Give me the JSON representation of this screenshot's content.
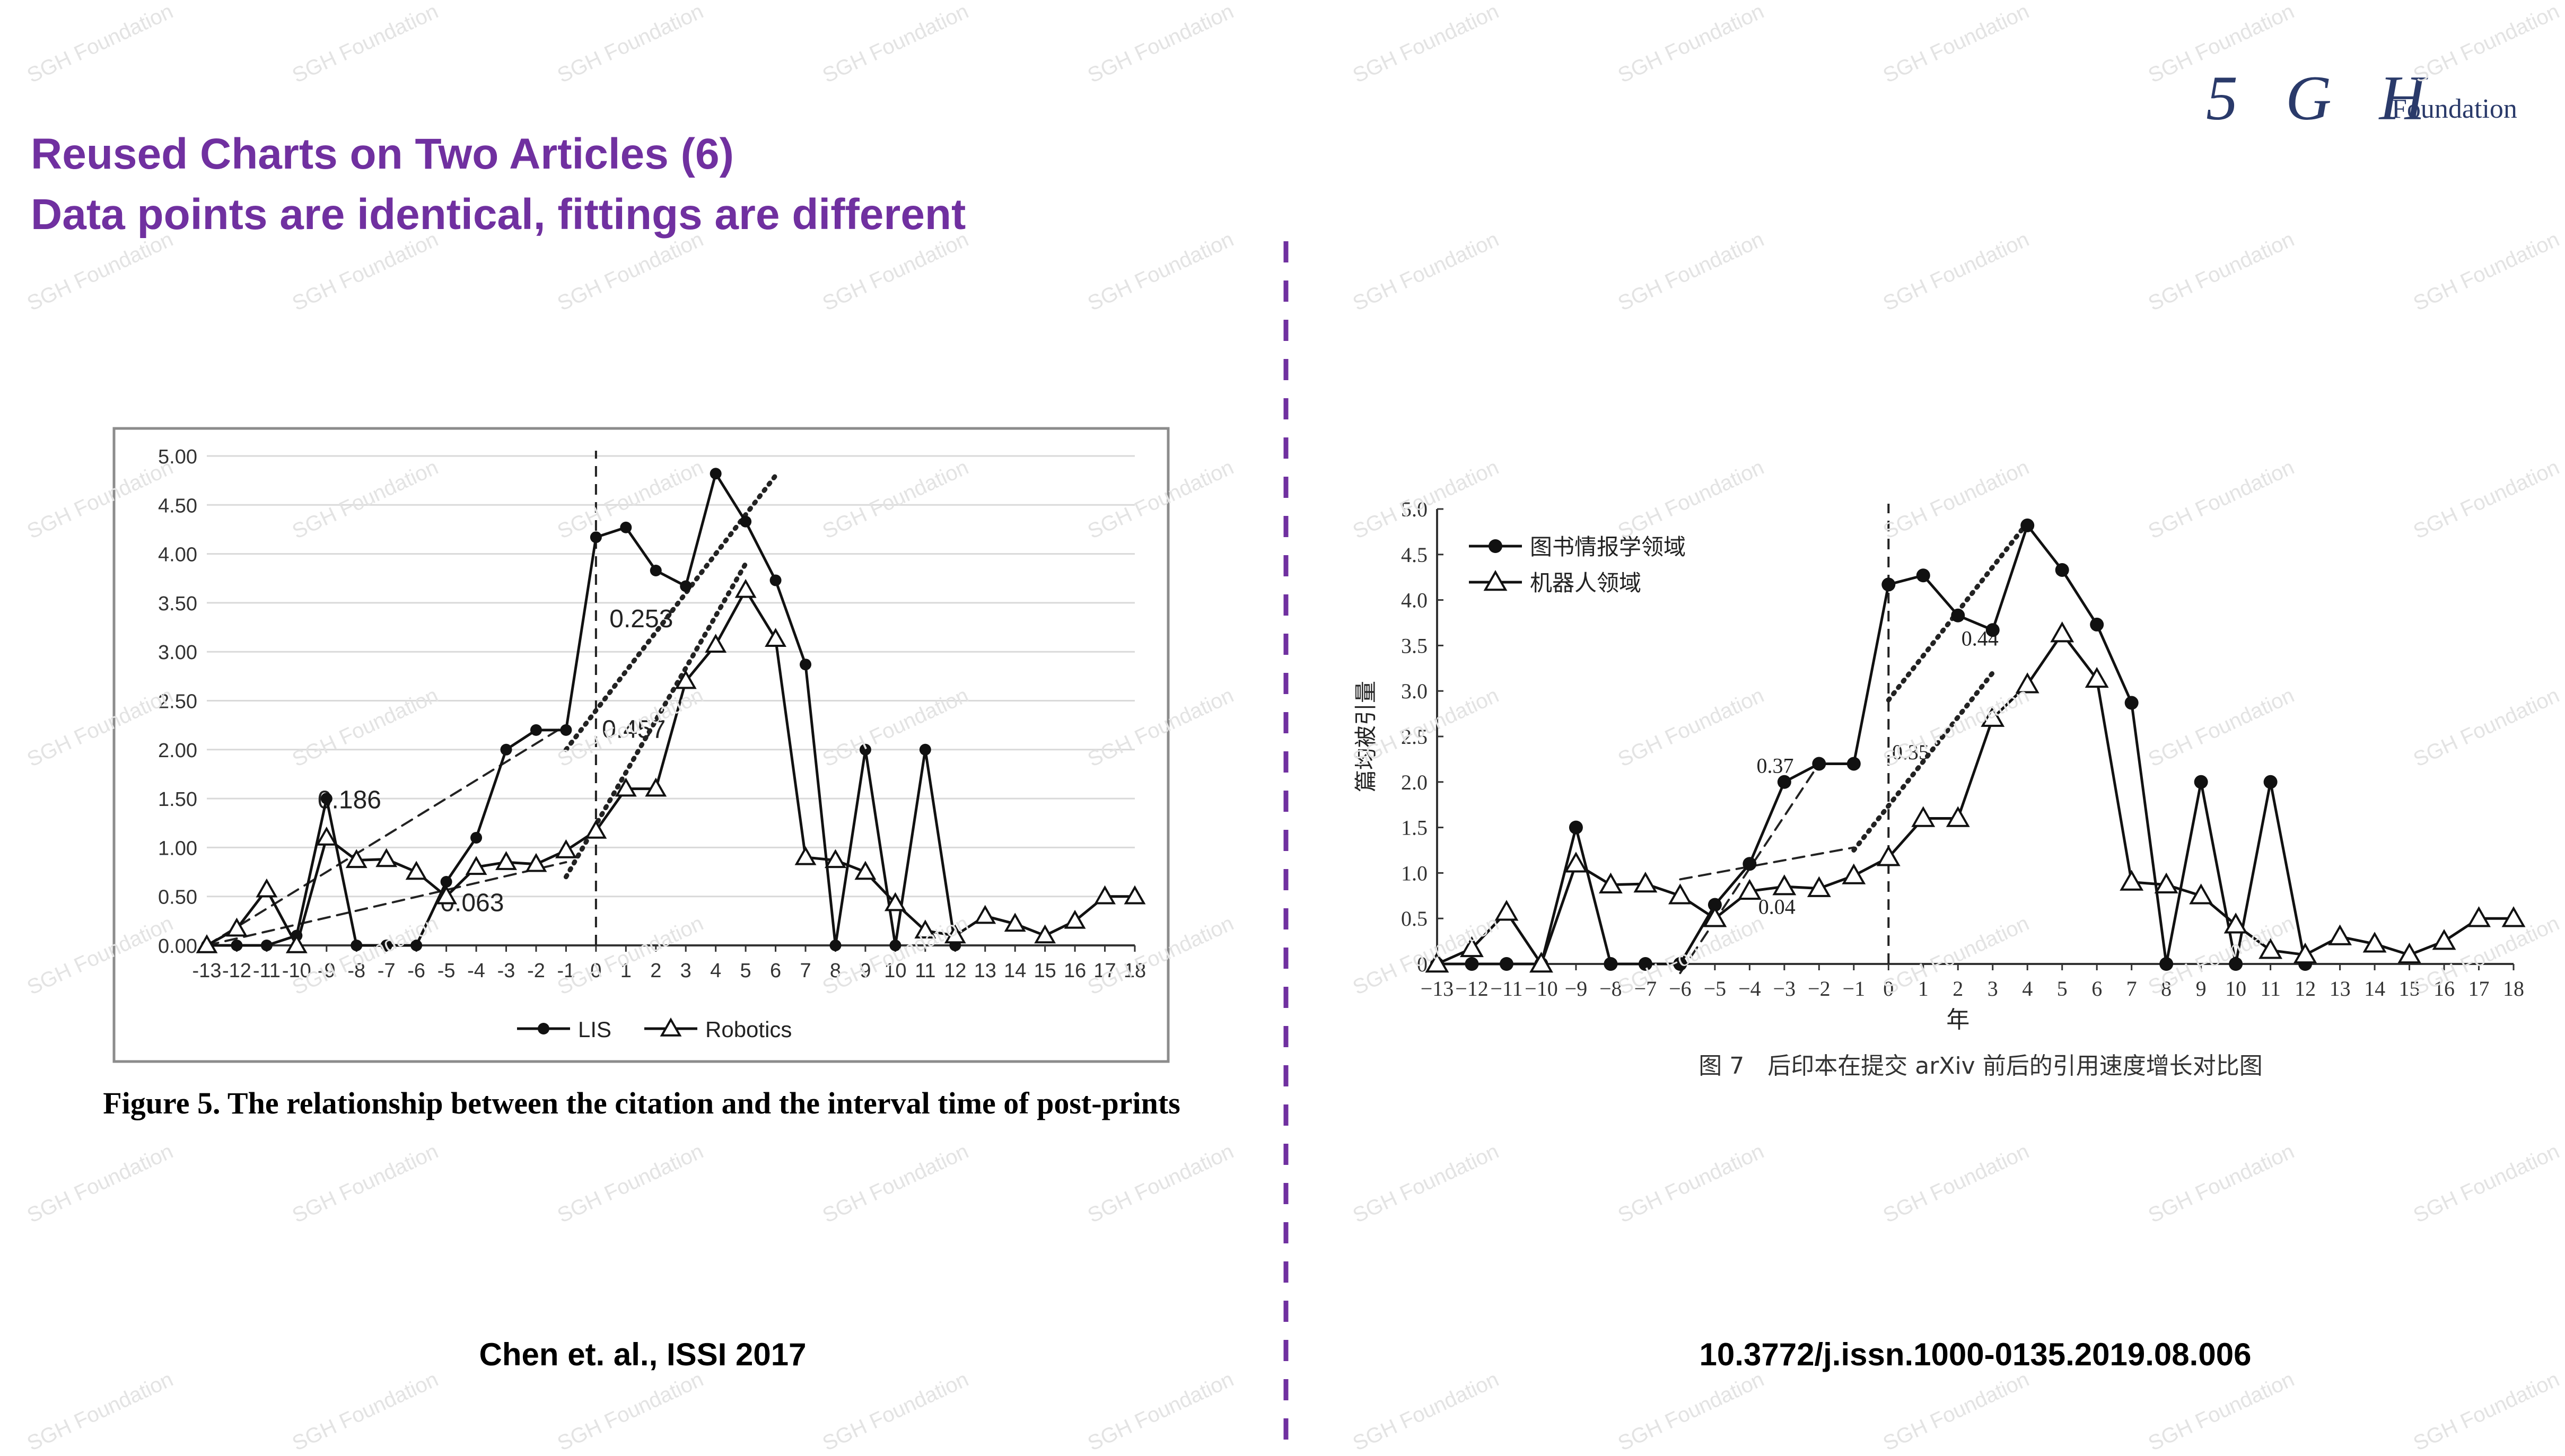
{
  "slide": {
    "title_line1": "Reused Charts on Two Articles (6)",
    "title_line2": "Data points are identical, fittings are different",
    "logo_script": "5 G H",
    "logo_word": "Foundation",
    "watermark": "SGH Foundation",
    "title_color": "#7030a0",
    "divider_color": "#7030a0"
  },
  "left": {
    "caption": "Figure 5. The relationship between the citation and the interval time of post-prints",
    "source": "Chen et. al., ISSI 2017"
  },
  "right": {
    "caption": "图 7　后印本在提交 arXiv 前后的引用速度增长对比图",
    "source": "10.3772/j.issn.1000-0135.2019.08.006"
  },
  "chart_data": [
    {
      "type": "line",
      "x": [
        -13,
        -12,
        -11,
        -10,
        -9,
        -8,
        -7,
        -6,
        -5,
        -4,
        -3,
        -2,
        -1,
        0,
        1,
        2,
        3,
        4,
        5,
        6,
        7,
        8,
        9,
        10,
        11,
        12,
        13,
        14,
        15,
        16,
        17,
        18
      ],
      "ylim": [
        0,
        5
      ],
      "ytick_labels": [
        "0.00",
        "0.50",
        "1.00",
        "1.50",
        "2.00",
        "2.50",
        "3.00",
        "3.50",
        "4.00",
        "4.50",
        "5.00"
      ],
      "grid": true,
      "legend_position": "bottom",
      "series": [
        {
          "name": "LIS",
          "marker": "filled-circle",
          "x": [
            -13,
            -12,
            -11,
            -10,
            -9,
            -8,
            -7,
            -6,
            -5,
            -4,
            -3,
            -2,
            -1,
            0,
            1,
            2,
            3,
            4,
            5,
            6,
            7,
            8,
            9,
            10,
            11,
            12
          ],
          "values": [
            0,
            0,
            0,
            0.1,
            1.5,
            0,
            0,
            0,
            0.65,
            1.1,
            2.0,
            2.2,
            2.2,
            4.17,
            4.27,
            3.83,
            3.67,
            4.82,
            4.33,
            3.73,
            2.87,
            0,
            2.0,
            0,
            2.0,
            0
          ]
        },
        {
          "name": "Robotics",
          "marker": "open-triangle",
          "x": [
            -13,
            -12,
            -11,
            -10,
            -9,
            -8,
            -7,
            -6,
            -5,
            -4,
            -3,
            -2,
            -1,
            0,
            1,
            2,
            3,
            4,
            5,
            6,
            7,
            8,
            9,
            10,
            11,
            12,
            13,
            14,
            15,
            16,
            17,
            18
          ],
          "values": [
            0,
            0.17,
            0.57,
            0,
            1.1,
            0.87,
            0.88,
            0.75,
            0.5,
            0.8,
            0.85,
            0.83,
            0.97,
            1.17,
            1.6,
            1.6,
            2.7,
            3.07,
            3.63,
            3.13,
            0.9,
            0.87,
            0.75,
            0.43,
            0.15,
            0.1,
            0.3,
            0.22,
            0.1,
            0.25,
            0.5,
            0.5
          ]
        }
      ],
      "fits": [
        {
          "label": "0.186",
          "style": "dashed",
          "from": [
            -13,
            0
          ],
          "to": [
            -1,
            2.25
          ]
        },
        {
          "label": "0.063",
          "style": "dashed",
          "from": [
            -13,
            0
          ],
          "to": [
            -1,
            0.85
          ]
        },
        {
          "label": "0.253",
          "style": "dotted",
          "from": [
            -1,
            2.0
          ],
          "to": [
            6,
            4.8
          ]
        },
        {
          "label": "0.457",
          "style": "dotted",
          "from": [
            -1,
            0.7
          ],
          "to": [
            5,
            3.9
          ]
        }
      ],
      "vline_x": 0
    },
    {
      "type": "line",
      "x": [
        -13,
        -12,
        -11,
        -10,
        -9,
        -8,
        -7,
        -6,
        -5,
        -4,
        -3,
        -2,
        -1,
        0,
        1,
        2,
        3,
        4,
        5,
        6,
        7,
        8,
        9,
        10,
        11,
        12,
        13,
        14,
        15,
        16,
        17,
        18
      ],
      "ylim": [
        0,
        5
      ],
      "ytick_labels": [
        "0",
        "0.5",
        "1.0",
        "1.5",
        "2.0",
        "2.5",
        "3.0",
        "3.5",
        "4.0",
        "4.5",
        "5.0"
      ],
      "xtick_labels": [
        "−13",
        "−12",
        "−11",
        "−10",
        "−9",
        "−8",
        "−7",
        "−6",
        "−5",
        "−4",
        "−3",
        "−2",
        "−1",
        "0",
        "1",
        "2",
        "3",
        "4",
        "5",
        "6",
        "7",
        "8",
        "9",
        "10",
        "11",
        "12",
        "13",
        "14",
        "15",
        "16",
        "17",
        "18"
      ],
      "xlabel": "年",
      "ylabel": "篇均被引量",
      "grid": false,
      "legend_position": "top-left",
      "series": [
        {
          "name": "图书情报学领域",
          "marker": "filled-circle",
          "x": [
            -13,
            -12,
            -11,
            -10,
            -9,
            -8,
            -7,
            -6,
            -5,
            -4,
            -3,
            -2,
            -1,
            0,
            1,
            2,
            3,
            4,
            5,
            6,
            7,
            8,
            9,
            10,
            11,
            12
          ],
          "values": [
            0,
            0,
            0,
            0,
            1.5,
            0,
            0,
            0,
            0.65,
            1.1,
            2.0,
            2.2,
            2.2,
            4.17,
            4.27,
            3.83,
            3.67,
            4.82,
            4.33,
            3.73,
            2.87,
            0,
            2.0,
            0,
            2.0,
            0
          ]
        },
        {
          "name": "机器人领域",
          "marker": "open-triangle",
          "x": [
            -13,
            -12,
            -11,
            -10,
            -9,
            -8,
            -7,
            -6,
            -5,
            -4,
            -3,
            -2,
            -1,
            0,
            1,
            2,
            3,
            4,
            5,
            6,
            7,
            8,
            9,
            10,
            11,
            12,
            13,
            14,
            15,
            16,
            17,
            18
          ],
          "values": [
            0,
            0.17,
            0.57,
            0,
            1.1,
            0.87,
            0.88,
            0.75,
            0.5,
            0.8,
            0.85,
            0.83,
            0.97,
            1.17,
            1.6,
            1.6,
            2.7,
            3.07,
            3.63,
            3.13,
            0.9,
            0.87,
            0.75,
            0.43,
            0.15,
            0.1,
            0.3,
            0.22,
            0.1,
            0.25,
            0.5,
            0.5
          ]
        }
      ],
      "fits": [
        {
          "label": "0.37",
          "style": "dashed",
          "from": [
            -6,
            -0.1
          ],
          "to": [
            -2,
            2.2
          ]
        },
        {
          "label": "0.04",
          "style": "dashed",
          "from": [
            -6,
            0.93
          ],
          "to": [
            -1,
            1.28
          ]
        },
        {
          "label": "0.44",
          "style": "dotted",
          "from": [
            0,
            2.9
          ],
          "to": [
            4,
            4.85
          ]
        },
        {
          "label": "0.35",
          "style": "dotted",
          "from": [
            -1,
            1.25
          ],
          "to": [
            3,
            3.2
          ]
        }
      ],
      "vline_x": 0
    }
  ]
}
